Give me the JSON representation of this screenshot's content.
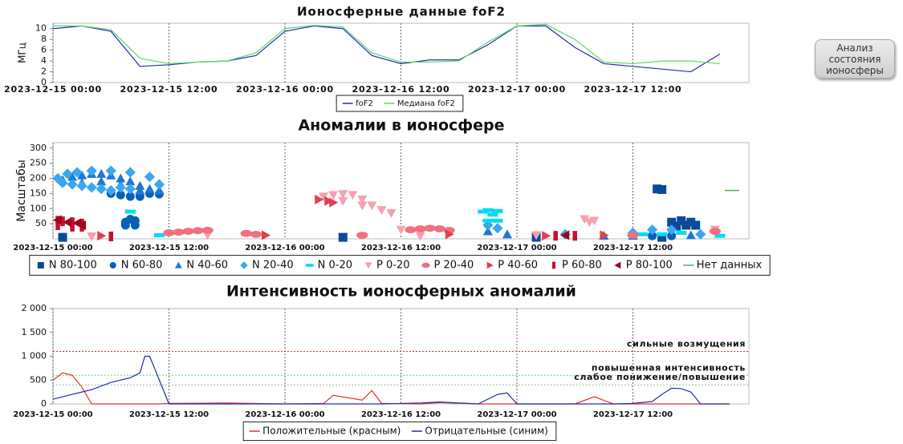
{
  "chart_data": [
    {
      "type": "line",
      "title": "Ионосферные данные foF2",
      "y_label": "МГц",
      "x": [
        "2023-12-15 00:00",
        "2023-12-15 03:00",
        "2023-12-15 06:00",
        "2023-12-15 09:00",
        "2023-12-15 12:00",
        "2023-12-15 15:00",
        "2023-12-15 18:00",
        "2023-12-15 21:00",
        "2023-12-16 00:00",
        "2023-12-16 03:00",
        "2023-12-16 06:00",
        "2023-12-16 09:00",
        "2023-12-16 12:00",
        "2023-12-16 15:00",
        "2023-12-16 18:00",
        "2023-12-16 21:00",
        "2023-12-17 00:00",
        "2023-12-17 03:00",
        "2023-12-17 06:00",
        "2023-12-17 09:00",
        "2023-12-17 12:00",
        "2023-12-17 15:00",
        "2023-12-17 18:00",
        "2023-12-17 21:00"
      ],
      "series": [
        {
          "name": "foF2",
          "color": "#1f2fb0",
          "values": [
            10,
            10.5,
            9.5,
            3,
            3.3,
            3.8,
            4,
            5,
            9.5,
            10.5,
            10,
            5,
            3.5,
            4.2,
            4.2,
            7,
            10.5,
            10.5,
            6.5,
            3.5,
            3,
            2.5,
            2,
            5.3
          ]
        },
        {
          "name": "Медиана foF2",
          "color": "#5ed85e",
          "values": [
            10.5,
            10.5,
            9.8,
            4.5,
            3.5,
            3.8,
            4,
            5.5,
            10,
            10.6,
            10.3,
            5.5,
            3.8,
            3.8,
            4,
            7.5,
            10.5,
            10.8,
            8,
            3.8,
            3.5,
            4,
            4,
            3.5
          ]
        }
      ],
      "xlim": [
        "2023-12-15 00:00",
        "2023-12-18 00:00"
      ],
      "xticks": [
        "2023-12-15 00:00",
        "2023-12-15 12:00",
        "2023-12-16 00:00",
        "2023-12-16 12:00",
        "2023-12-17 00:00",
        "2023-12-17 12:00"
      ],
      "ylim": [
        0,
        11
      ],
      "yticks": [
        0,
        2,
        4,
        6,
        8,
        10
      ],
      "grid": "x",
      "legend": "bottom"
    },
    {
      "type": "scatter",
      "title": "Аномалии в ионосфере",
      "y_label": "Масштабы",
      "series": [
        {
          "name": "N 80-100",
          "color": "#0a4a9a",
          "marker": "square",
          "x": [
            "2023-12-17 14:30",
            "2023-12-17 15:00",
            "2023-12-17 16:00",
            "2023-12-17 17:00",
            "2023-12-17 18:00",
            "2023-12-17 17:30",
            "2023-12-17 16:30",
            "2023-12-17 18:30",
            "2023-12-15 01:00",
            "2023-12-16 06:00",
            "2023-12-17 02:00",
            "2023-12-17 15:00"
          ],
          "values": [
            165,
            163,
            55,
            60,
            55,
            45,
            42,
            45,
            5,
            5,
            5,
            5
          ]
        },
        {
          "name": "N 60-80",
          "color": "#0860b8",
          "marker": "circle",
          "x": [
            "2023-12-15 07:30",
            "2023-12-15 08:00",
            "2023-12-15 08:30",
            "2023-12-15 07:30",
            "2023-12-15 08:30",
            "2023-12-15 06:00",
            "2023-12-15 07:00",
            "2023-12-15 08:00",
            "2023-12-15 09:00",
            "2023-12-15 10:00",
            "2023-12-15 11:00",
            "2023-12-17 14:00",
            "2023-12-17 16:00"
          ],
          "values": [
            55,
            65,
            60,
            45,
            45,
            150,
            145,
            140,
            140,
            150,
            148,
            10,
            10
          ]
        },
        {
          "name": "N 40-60",
          "color": "#1e78d4",
          "marker": "triangle-up",
          "x": [
            "2023-12-15 01:00",
            "2023-12-15 02:00",
            "2023-12-15 03:00",
            "2023-12-15 04:00",
            "2023-12-15 05:00",
            "2023-12-15 06:00",
            "2023-12-15 07:00",
            "2023-12-15 08:00",
            "2023-12-15 09:00",
            "2023-12-15 10:00",
            "2023-12-15 11:00",
            "2023-12-15 03:00",
            "2023-12-15 05:00",
            "2023-12-15 07:00",
            "2023-12-15 09:00",
            "2023-12-16 21:00",
            "2023-12-16 23:00",
            "2023-12-17 09:00",
            "2023-12-17 12:00",
            "2023-12-17 18:00"
          ],
          "values": [
            195,
            205,
            210,
            215,
            215,
            210,
            200,
            190,
            175,
            165,
            160,
            185,
            190,
            180,
            160,
            25,
            15,
            10,
            10,
            12
          ]
        },
        {
          "name": "N 20-40",
          "color": "#3aa8f0",
          "marker": "diamond",
          "x": [
            "2023-12-15 00:30",
            "2023-12-15 01:00",
            "2023-12-15 02:00",
            "2023-12-15 03:00",
            "2023-12-15 04:00",
            "2023-12-15 05:00",
            "2023-12-15 06:00",
            "2023-12-15 07:00",
            "2023-12-15 08:00",
            "2023-12-15 01:30",
            "2023-12-15 02:30",
            "2023-12-15 04:00",
            "2023-12-15 06:00",
            "2023-12-15 08:00",
            "2023-12-15 10:00",
            "2023-12-15 11:00",
            "2023-12-16 21:00",
            "2023-12-16 22:00",
            "2023-12-17 05:00",
            "2023-12-17 12:00",
            "2023-12-17 14:00",
            "2023-12-17 16:00",
            "2023-12-17 19:00"
          ],
          "values": [
            200,
            185,
            180,
            175,
            170,
            165,
            160,
            170,
            165,
            215,
            220,
            225,
            225,
            220,
            205,
            180,
            45,
            35,
            15,
            20,
            30,
            30,
            15
          ]
        },
        {
          "name": "N 0-20",
          "color": "#00dcf4",
          "marker": "dash",
          "x": [
            "2023-12-16 20:30",
            "2023-12-16 21:00",
            "2023-12-16 22:00",
            "2023-12-16 21:30",
            "2023-12-15 08:00",
            "2023-12-16 21:00",
            "2023-12-16 22:00",
            "2023-12-17 13:00",
            "2023-12-17 15:00",
            "2023-12-17 17:00",
            "2023-12-17 21:00",
            "2023-12-15 11:00"
          ],
          "values": [
            90,
            95,
            92,
            80,
            90,
            60,
            60,
            15,
            15,
            20,
            10,
            12
          ]
        },
        {
          "name": "P 0-20",
          "color": "#f7a0b0",
          "marker": "triangle-down",
          "x": [
            "2023-12-16 04:00",
            "2023-12-16 05:00",
            "2023-12-16 06:00",
            "2023-12-16 07:00",
            "2023-12-16 08:00",
            "2023-12-16 09:00",
            "2023-12-16 10:00",
            "2023-12-16 11:00",
            "2023-12-16 06:00",
            "2023-12-16 08:00",
            "2023-12-17 07:00",
            "2023-12-17 08:00",
            "2023-12-17 07:30",
            "2023-12-16 12:00",
            "2023-12-17 20:30",
            "2023-12-15 04:00",
            "2023-12-15 16:00",
            "2023-12-16 14:00",
            "2023-12-17 02:00"
          ],
          "values": [
            140,
            145,
            148,
            145,
            130,
            110,
            95,
            85,
            125,
            110,
            65,
            60,
            55,
            30,
            30,
            8,
            12,
            10,
            12
          ]
        },
        {
          "name": "P 20-40",
          "color": "#f07080",
          "marker": "ellipse",
          "x": [
            "2023-12-15 12:00",
            "2023-12-15 13:00",
            "2023-12-15 14:00",
            "2023-12-15 15:00",
            "2023-12-15 16:00",
            "2023-12-16 13:00",
            "2023-12-16 14:00",
            "2023-12-16 15:00",
            "2023-12-16 16:00",
            "2023-12-16 17:00",
            "2023-12-15 21:00",
            "2023-12-16 08:00",
            "2023-12-17 12:00",
            "2023-12-17 20:30",
            "2023-12-15 20:00"
          ],
          "values": [
            20,
            22,
            25,
            27,
            28,
            30,
            33,
            35,
            33,
            28,
            15,
            12,
            12,
            25,
            18
          ]
        },
        {
          "name": "P 40-60",
          "color": "#e0404f",
          "marker": "triangle-right",
          "x": [
            "2023-12-16 03:30",
            "2023-12-16 04:30",
            "2023-12-16 05:00",
            "2023-12-15 05:00",
            "2023-12-15 22:00",
            "2023-12-16 17:00",
            "2023-12-17 03:00",
            "2023-12-17 09:00"
          ],
          "values": [
            130,
            125,
            120,
            10,
            12,
            15,
            10,
            12
          ]
        },
        {
          "name": "P 60-80",
          "color": "#c8102e",
          "marker": "bar",
          "x": [
            "2023-12-15 00:30",
            "2023-12-15 01:00",
            "2023-12-15 02:00",
            "2023-12-15 03:00",
            "2023-12-15 00:30",
            "2023-12-15 02:00",
            "2023-12-15 03:00",
            "2023-12-17 04:00",
            "2023-12-17 06:00",
            "2023-12-15 06:00"
          ],
          "values": [
            60,
            58,
            55,
            50,
            45,
            40,
            40,
            10,
            10,
            8
          ]
        },
        {
          "name": "P 80-100",
          "color": "#a00020",
          "marker": "triangle-left",
          "x": [
            "2023-12-15 00:30",
            "2023-12-15 01:30",
            "2023-12-15 02:30",
            "2023-12-15 03:00",
            "2023-12-17 05:00"
          ],
          "values": [
            62,
            55,
            52,
            45,
            12
          ]
        },
        {
          "name": "Нет данных",
          "color": "#4caf50",
          "marker": "line",
          "x": [
            "2023-12-17 21:30",
            "2023-12-17 23:00"
          ],
          "values": [
            160,
            160
          ]
        }
      ],
      "xlim": [
        "2023-12-15 00:00",
        "2023-12-18 00:00"
      ],
      "xticks": [
        "2023-12-15 00:00",
        "2023-12-15 12:00",
        "2023-12-16 00:00",
        "2023-12-16 12:00",
        "2023-12-17 00:00",
        "2023-12-17 12:00"
      ],
      "ylim": [
        0,
        318
      ],
      "yticks": [
        50,
        100,
        150,
        200,
        250,
        300
      ],
      "grid": "x",
      "legend": "bottom"
    },
    {
      "type": "line",
      "title": "Интенсивность ионосферных аномалий",
      "x": [
        "2023-12-15 00:00",
        "2023-12-15 01:00",
        "2023-12-15 02:00",
        "2023-12-15 03:00",
        "2023-12-15 04:00",
        "2023-12-15 06:00",
        "2023-12-15 08:00",
        "2023-12-15 09:00",
        "2023-12-15 09:30",
        "2023-12-15 10:00",
        "2023-12-15 11:00",
        "2023-12-15 12:00",
        "2023-12-15 18:00",
        "2023-12-16 00:00",
        "2023-12-16 04:00",
        "2023-12-16 05:00",
        "2023-12-16 08:00",
        "2023-12-16 09:00",
        "2023-12-16 10:00",
        "2023-12-16 14:00",
        "2023-12-16 16:00",
        "2023-12-16 20:00",
        "2023-12-16 22:00",
        "2023-12-16 23:00",
        "2023-12-17 00:00",
        "2023-12-17 06:00",
        "2023-12-17 08:00",
        "2023-12-17 10:00",
        "2023-12-17 12:00",
        "2023-12-17 14:00",
        "2023-12-17 15:00",
        "2023-12-17 16:00",
        "2023-12-17 17:00",
        "2023-12-17 18:00",
        "2023-12-17 19:00",
        "2023-12-17 22:00"
      ],
      "series": [
        {
          "name": "Положительные (красным)",
          "color": "#e03030",
          "values": [
            500,
            650,
            600,
            350,
            0,
            0,
            0,
            0,
            0,
            0,
            0,
            10,
            20,
            0,
            10,
            180,
            80,
            280,
            10,
            0,
            30,
            0,
            0,
            0,
            0,
            0,
            150,
            0,
            0,
            0,
            0,
            0,
            0,
            0,
            0,
            0
          ]
        },
        {
          "name": "Отрицательные (синим)",
          "color": "#1f2fb0",
          "values": [
            100,
            150,
            200,
            250,
            300,
            450,
            550,
            650,
            1000,
            1000,
            500,
            0,
            0,
            0,
            0,
            0,
            0,
            0,
            0,
            20,
            40,
            0,
            200,
            230,
            0,
            0,
            0,
            0,
            10,
            50,
            200,
            330,
            320,
            250,
            0,
            0
          ]
        }
      ],
      "thresholds": [
        {
          "value": 1100,
          "label": "сильные возмущения",
          "color": "#c0392b"
        },
        {
          "value": 600,
          "label": "повышенная интенсивность",
          "color": "#6cd86c"
        },
        {
          "value": 400,
          "label": "слабое понижение/повышение",
          "color": "#8fbf8f"
        }
      ],
      "xlim": [
        "2023-12-15 00:00",
        "2023-12-18 00:00"
      ],
      "xticks": [
        "2023-12-15 00:00",
        "2023-12-15 12:00",
        "2023-12-16 00:00",
        "2023-12-16 12:00",
        "2023-12-17 00:00",
        "2023-12-17 12:00"
      ],
      "ylim": [
        0,
        2000
      ],
      "yticks": [
        0,
        500,
        {
          "value": 1000,
          "label": "1 000"
        },
        {
          "value": 1500,
          "label": "1 500"
        },
        {
          "value": 2000,
          "label": "2 000"
        }
      ],
      "grid": "x",
      "legend": "bottom"
    }
  ],
  "button": {
    "label": "Анализ состояния ионосферы"
  }
}
